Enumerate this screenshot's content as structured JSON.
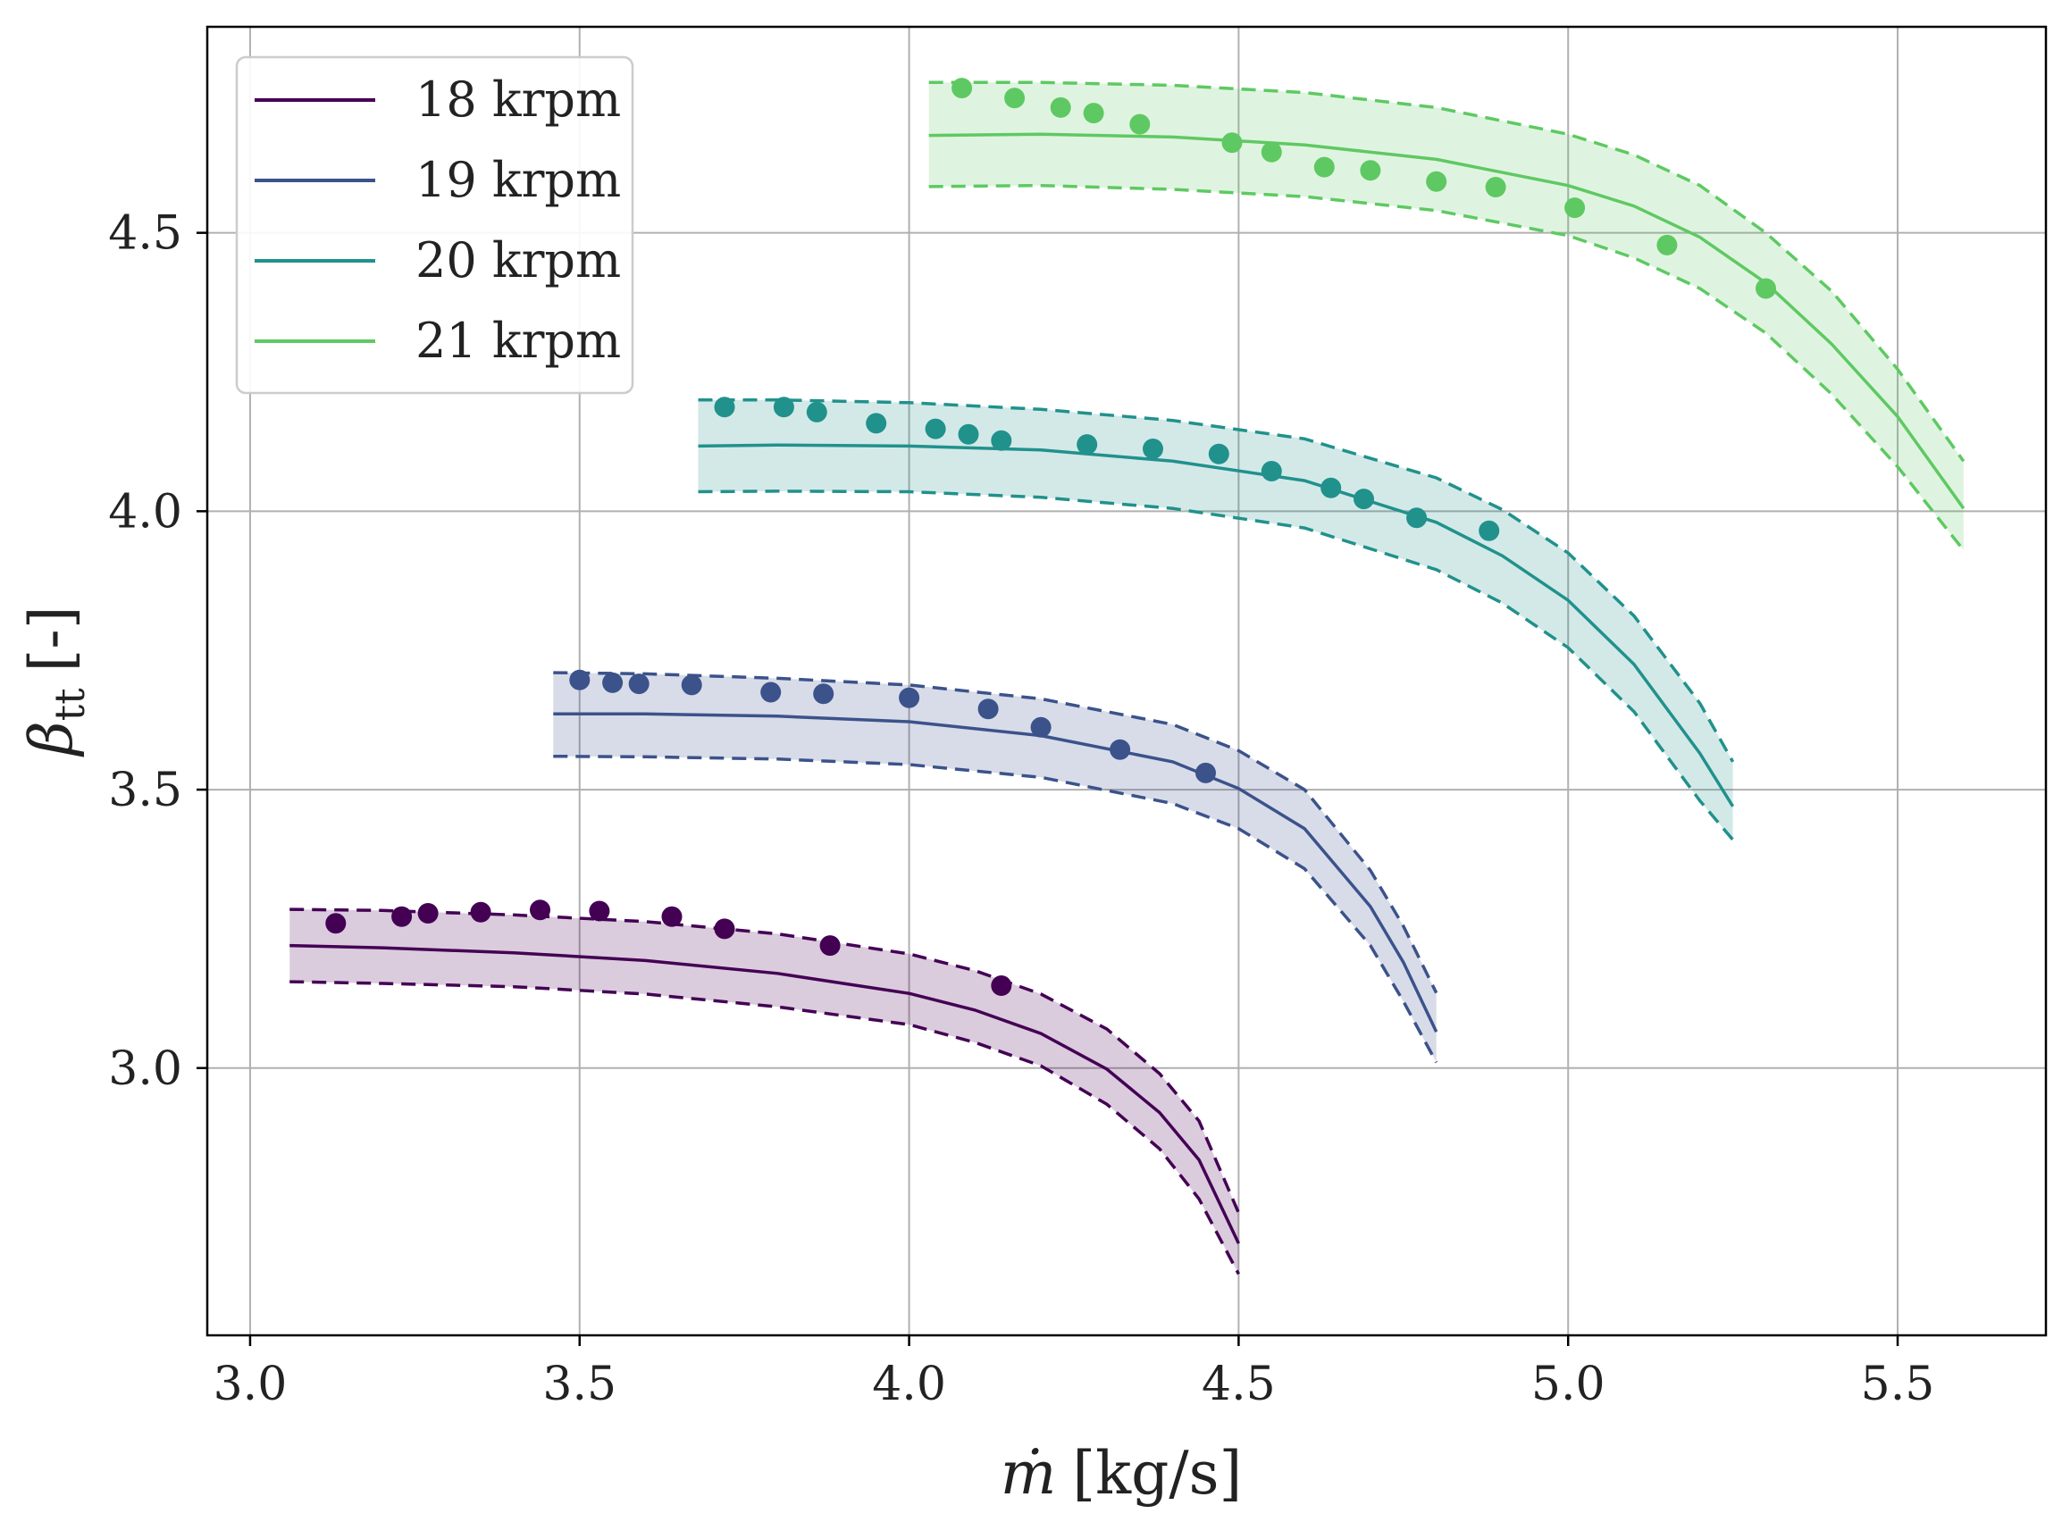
{
  "chart_data": {
    "type": "line",
    "title": "",
    "xlabel": {
      "symbol": "ṁ",
      "unit": "[kg/s]"
    },
    "ylabel": {
      "symbol": "β",
      "subscript": "tt",
      "unit": "[-]"
    },
    "xlim": [
      2.935,
      5.725
    ],
    "ylim": [
      2.52,
      4.87
    ],
    "xticks": [
      3.0,
      3.5,
      4.0,
      4.5,
      5.0,
      5.5
    ],
    "xtick_labels": [
      "3.0",
      "3.5",
      "4.0",
      "4.5",
      "5.0",
      "5.5"
    ],
    "yticks": [
      3.0,
      3.5,
      4.0,
      4.5
    ],
    "ytick_labels": [
      "3.0",
      "3.5",
      "4.0",
      "4.5"
    ],
    "grid": true,
    "legend_position": "top-left",
    "series": [
      {
        "name": "18 krpm",
        "color": "#440154",
        "mean": {
          "x": [
            3.06,
            3.2,
            3.4,
            3.6,
            3.8,
            4.0,
            4.1,
            4.2,
            4.3,
            4.38,
            4.44,
            4.5
          ],
          "y": [
            3.22,
            3.216,
            3.207,
            3.193,
            3.17,
            3.134,
            3.104,
            3.062,
            2.998,
            2.92,
            2.835,
            2.685
          ]
        },
        "upper": {
          "x": [
            3.06,
            3.2,
            3.4,
            3.6,
            3.8,
            4.0,
            4.1,
            4.2,
            4.3,
            4.38,
            4.44,
            4.5
          ],
          "y": [
            3.285,
            3.283,
            3.275,
            3.263,
            3.241,
            3.205,
            3.175,
            3.133,
            3.07,
            2.99,
            2.905,
            2.74
          ]
        },
        "lower": {
          "x": [
            3.06,
            3.2,
            3.4,
            3.6,
            3.8,
            4.0,
            4.1,
            4.2,
            4.3,
            4.38,
            4.44,
            4.5
          ],
          "y": [
            3.155,
            3.152,
            3.146,
            3.133,
            3.11,
            3.078,
            3.046,
            3.004,
            2.935,
            2.855,
            2.765,
            2.63
          ]
        },
        "measured": {
          "x": [
            3.13,
            3.23,
            3.27,
            3.35,
            3.44,
            3.53,
            3.64,
            3.72,
            3.88,
            4.14
          ],
          "y": [
            3.26,
            3.272,
            3.278,
            3.28,
            3.284,
            3.282,
            3.272,
            3.25,
            3.22,
            3.148
          ]
        }
      },
      {
        "name": "19 krpm",
        "color": "#3b528b",
        "mean": {
          "x": [
            3.46,
            3.6,
            3.8,
            4.0,
            4.2,
            4.4,
            4.5,
            4.6,
            4.7,
            4.75,
            4.8
          ],
          "y": [
            3.636,
            3.636,
            3.632,
            3.622,
            3.597,
            3.55,
            3.502,
            3.43,
            3.29,
            3.19,
            3.065
          ]
        },
        "upper": {
          "x": [
            3.46,
            3.6,
            3.8,
            4.0,
            4.2,
            4.4,
            4.5,
            4.6,
            4.7,
            4.75,
            4.8
          ],
          "y": [
            3.71,
            3.708,
            3.7,
            3.688,
            3.663,
            3.617,
            3.57,
            3.5,
            3.355,
            3.255,
            3.135
          ]
        },
        "lower": {
          "x": [
            3.46,
            3.6,
            3.8,
            4.0,
            4.2,
            4.4,
            4.5,
            4.6,
            4.7,
            4.75,
            4.8
          ],
          "y": [
            3.56,
            3.559,
            3.555,
            3.545,
            3.522,
            3.475,
            3.43,
            3.358,
            3.22,
            3.12,
            3.01
          ]
        },
        "measured": {
          "x": [
            3.5,
            3.55,
            3.59,
            3.67,
            3.79,
            3.87,
            4.0,
            4.12,
            4.2,
            4.32,
            4.45
          ],
          "y": [
            3.697,
            3.692,
            3.69,
            3.688,
            3.675,
            3.672,
            3.665,
            3.645,
            3.612,
            3.572,
            3.53
          ]
        }
      },
      {
        "name": "20 krpm",
        "color": "#21918c",
        "mean": {
          "x": [
            3.68,
            3.8,
            4.0,
            4.2,
            4.4,
            4.6,
            4.8,
            4.9,
            5.0,
            5.1,
            5.2,
            5.25
          ],
          "y": [
            4.117,
            4.119,
            4.117,
            4.11,
            4.09,
            4.055,
            3.98,
            3.92,
            3.84,
            3.725,
            3.565,
            3.47
          ]
        },
        "upper": {
          "x": [
            3.68,
            3.8,
            4.0,
            4.2,
            4.4,
            4.6,
            4.8,
            4.9,
            5.0,
            5.1,
            5.2,
            5.25
          ],
          "y": [
            4.2,
            4.2,
            4.195,
            4.183,
            4.163,
            4.13,
            4.06,
            4.003,
            3.925,
            3.812,
            3.655,
            3.55
          ]
        },
        "lower": {
          "x": [
            3.68,
            3.8,
            4.0,
            4.2,
            4.4,
            4.6,
            4.8,
            4.9,
            5.0,
            5.1,
            5.2,
            5.25
          ],
          "y": [
            4.035,
            4.036,
            4.035,
            4.025,
            4.005,
            3.97,
            3.895,
            3.835,
            3.755,
            3.64,
            3.48,
            3.41
          ]
        },
        "measured": {
          "x": [
            3.72,
            3.81,
            3.86,
            3.95,
            4.04,
            4.09,
            4.14,
            4.27,
            4.37,
            4.47,
            4.55,
            4.64,
            4.69,
            4.77,
            4.88
          ],
          "y": [
            4.187,
            4.187,
            4.178,
            4.158,
            4.148,
            4.138,
            4.127,
            4.12,
            4.112,
            4.103,
            4.072,
            4.042,
            4.022,
            3.988,
            3.965
          ]
        }
      },
      {
        "name": "21 krpm",
        "color": "#5ec962",
        "mean": {
          "x": [
            4.03,
            4.2,
            4.4,
            4.6,
            4.8,
            5.0,
            5.1,
            5.2,
            5.3,
            5.4,
            5.5,
            5.6
          ],
          "y": [
            4.675,
            4.677,
            4.672,
            4.658,
            4.632,
            4.585,
            4.548,
            4.492,
            4.41,
            4.3,
            4.17,
            4.005
          ]
        },
        "upper": {
          "x": [
            4.03,
            4.2,
            4.4,
            4.6,
            4.8,
            5.0,
            5.1,
            5.2,
            5.3,
            5.4,
            5.5,
            5.6
          ],
          "y": [
            4.77,
            4.77,
            4.765,
            4.752,
            4.725,
            4.677,
            4.64,
            4.585,
            4.5,
            4.395,
            4.255,
            4.09
          ]
        },
        "lower": {
          "x": [
            4.03,
            4.2,
            4.4,
            4.6,
            4.8,
            5.0,
            5.1,
            5.2,
            5.3,
            5.4,
            5.5,
            5.6
          ],
          "y": [
            4.583,
            4.585,
            4.578,
            4.565,
            4.54,
            4.495,
            4.455,
            4.4,
            4.32,
            4.21,
            4.08,
            3.93
          ]
        },
        "measured": {
          "x": [
            4.08,
            4.16,
            4.23,
            4.28,
            4.35,
            4.49,
            4.55,
            4.63,
            4.7,
            4.8,
            4.89,
            5.01,
            5.15,
            5.3
          ],
          "y": [
            4.76,
            4.742,
            4.725,
            4.715,
            4.695,
            4.662,
            4.645,
            4.618,
            4.612,
            4.592,
            4.582,
            4.545,
            4.478,
            4.4
          ]
        }
      }
    ]
  }
}
